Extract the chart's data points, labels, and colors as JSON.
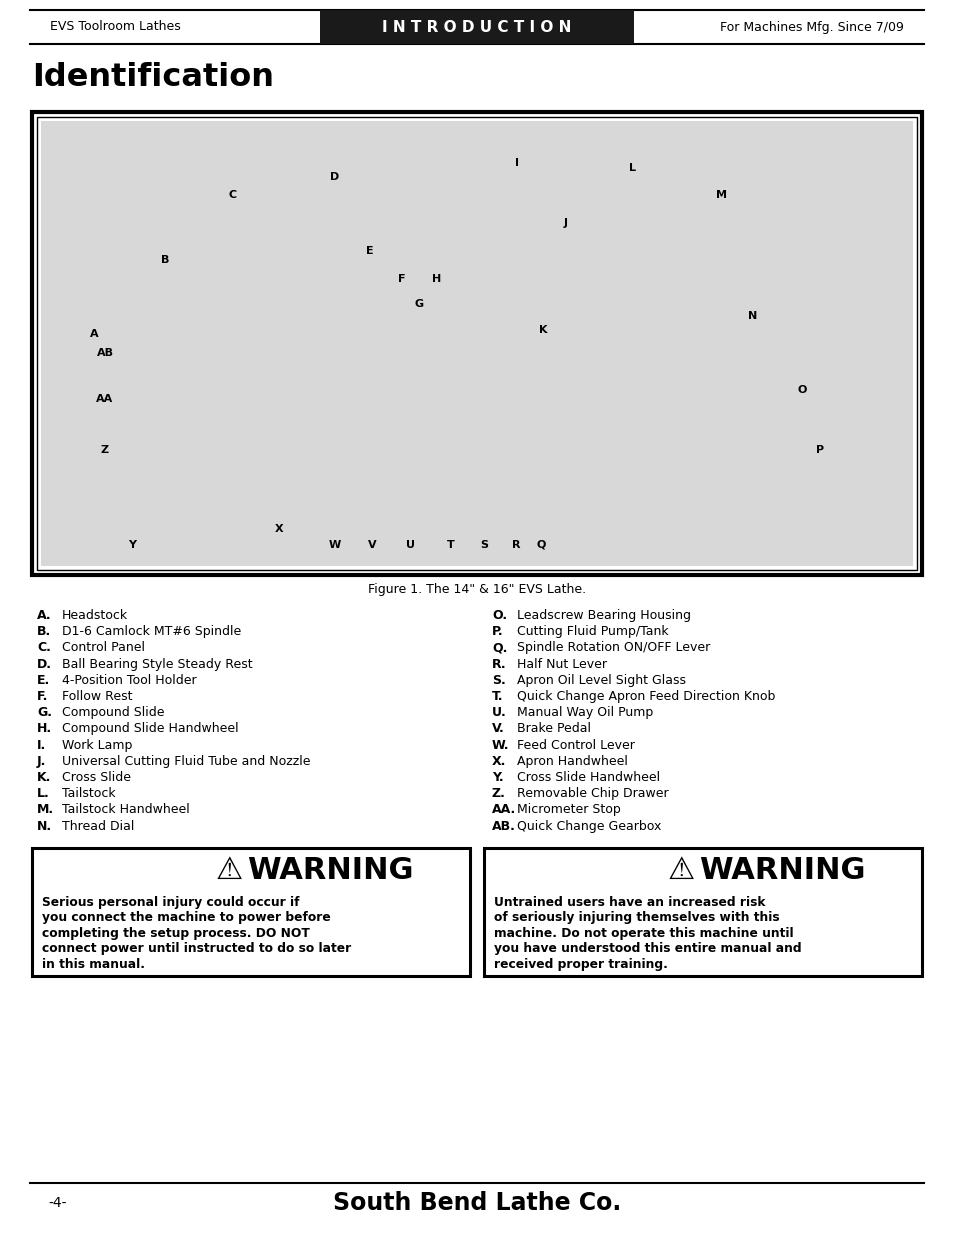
{
  "page_bg": "#ffffff",
  "header_bg": "#1a1a1a",
  "header_text": "I N T R O D U C T I O N",
  "header_left": "EVS Toolroom Lathes",
  "header_right": "For Machines Mfg. Since 7/09",
  "title": "Identification",
  "figure_caption": "Figure 1. The 14\" & 16\" EVS Lathe.",
  "footer_page": "-4-",
  "footer_brand": "South Bend Lathe Co.",
  "items_left": [
    [
      "A.",
      "Headstock"
    ],
    [
      "B.",
      "D1-6 Camlock MT#6 Spindle"
    ],
    [
      "C.",
      "Control Panel"
    ],
    [
      "D.",
      "Ball Bearing Style Steady Rest"
    ],
    [
      "E.",
      "4-Position Tool Holder"
    ],
    [
      "F.",
      "Follow Rest"
    ],
    [
      "G.",
      "Compound Slide"
    ],
    [
      "H.",
      "Compound Slide Handwheel"
    ],
    [
      "I.",
      "Work Lamp"
    ],
    [
      "J.",
      "Universal Cutting Fluid Tube and Nozzle"
    ],
    [
      "K.",
      "Cross Slide"
    ],
    [
      "L.",
      "Tailstock"
    ],
    [
      "M.",
      "Tailstock Handwheel"
    ],
    [
      "N.",
      "Thread Dial"
    ]
  ],
  "items_right": [
    [
      "O.",
      "Leadscrew Bearing Housing"
    ],
    [
      "P.",
      "Cutting Fluid Pump/Tank"
    ],
    [
      "Q.",
      "Spindle Rotation ON/OFF Lever"
    ],
    [
      "R.",
      "Half Nut Lever"
    ],
    [
      "S.",
      "Apron Oil Level Sight Glass"
    ],
    [
      "T.",
      "Quick Change Apron Feed Direction Knob"
    ],
    [
      "U.",
      "Manual Way Oil Pump"
    ],
    [
      "V.",
      "Brake Pedal"
    ],
    [
      "W.",
      "Feed Control Lever"
    ],
    [
      "X.",
      "Apron Handwheel"
    ],
    [
      "Y.",
      "Cross Slide Handwheel"
    ],
    [
      "Z.",
      "Removable Chip Drawer"
    ],
    [
      "AA.",
      "Micrometer Stop"
    ],
    [
      "AB.",
      "Quick Change Gearbox"
    ]
  ],
  "warning1_title": "WARNING",
  "warning1_body": [
    "Serious personal injury could occur if",
    "you connect the machine to power before",
    "completing the setup process. DO NOT",
    "connect power until instructed to do so later",
    "in this manual."
  ],
  "warning2_title": "WARNING",
  "warning2_body": [
    "Untrained users have an increased risk",
    "of seriously injuring themselves with this",
    "machine. Do not operate this machine until",
    "you have understood this entire manual and",
    "received proper training."
  ],
  "warning_bg": "#ffffff",
  "warning_border": "#000000",
  "text_color": "#1a1a1a"
}
